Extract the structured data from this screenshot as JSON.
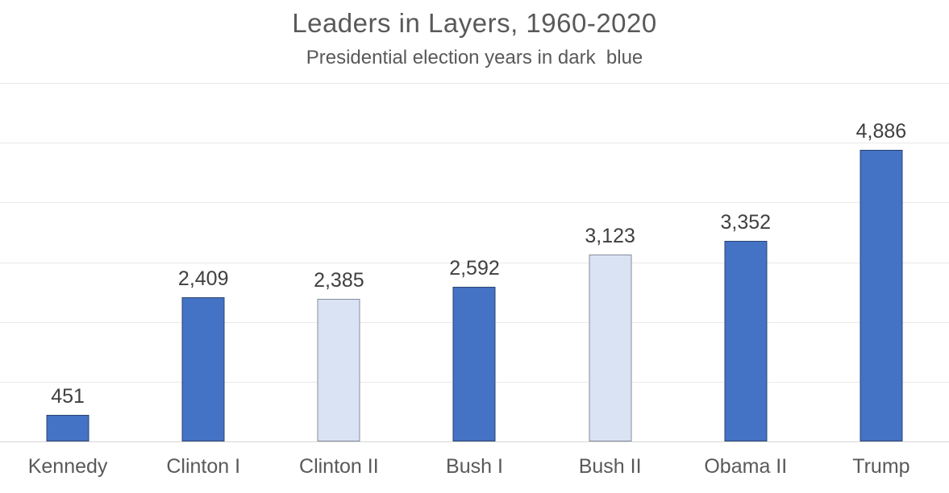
{
  "title": "Leaders in Layers, 1960-2020",
  "subtitle": "Presidential election years in dark  blue",
  "chart_data": {
    "type": "bar",
    "title": "Leaders in Layers, 1960-2020",
    "subtitle": "Presidential election years in dark  blue",
    "categories": [
      "Kennedy",
      "Clinton I",
      "Clinton II",
      "Bush I",
      "Bush II",
      "Obama II",
      "Trump"
    ],
    "values": [
      451,
      2409,
      2385,
      2592,
      3123,
      3352,
      4886
    ],
    "value_labels": [
      "451",
      "2,409",
      "2,385",
      "2,592",
      "3,123",
      "3,352",
      "4,886"
    ],
    "election_year": [
      true,
      true,
      false,
      true,
      false,
      true,
      true
    ],
    "xlabel": "",
    "ylabel": "",
    "ylim": [
      0,
      6000
    ],
    "gridline_interval": 1000,
    "grid": true,
    "y_tick_labels_shown": false,
    "legend": "none"
  },
  "colors": {
    "dark_bar_fill": "#4472C4",
    "dark_bar_border": "#2C4470",
    "light_bar_fill": "#DAE3F3",
    "light_bar_border": "#848C9B",
    "gridline": "#E9E9E9",
    "axis_line": "#D6D6D6",
    "title_text": "#595959",
    "value_label_text": "#404040",
    "category_label_text": "#595959",
    "background": "#FFFFFF"
  }
}
